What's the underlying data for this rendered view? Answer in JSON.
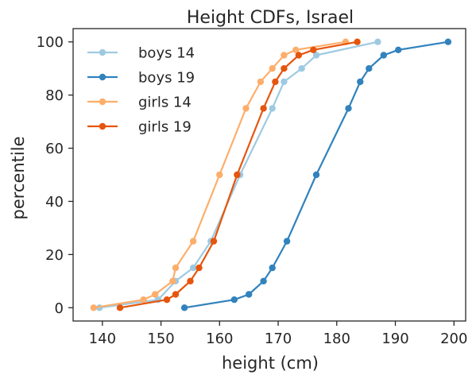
{
  "chart_data": {
    "type": "line",
    "title": "Height CDFs, Israel",
    "xlabel": "height (cm)",
    "ylabel": "percentile",
    "xlim": [
      135,
      202
    ],
    "ylim": [
      -5,
      105
    ],
    "xticks": [
      140,
      150,
      160,
      170,
      180,
      190,
      200
    ],
    "yticks": [
      0,
      20,
      40,
      60,
      80,
      100
    ],
    "grid": false,
    "legend_location": "upper-left",
    "series": [
      {
        "name": "boys 14",
        "color": "#9ecae1",
        "x": [
          139.5,
          149.5,
          152.5,
          155.5,
          158.5,
          163.5,
          169.0,
          171.0,
          174.0,
          176.5,
          187.0
        ],
        "y": [
          0,
          3,
          10,
          15,
          25,
          50,
          75,
          85,
          90,
          95,
          100
        ]
      },
      {
        "name": "boys 19",
        "color": "#3182bd",
        "x": [
          154.0,
          162.5,
          165.0,
          167.5,
          169.0,
          171.5,
          176.5,
          182.0,
          184.0,
          185.5,
          188.0,
          190.5,
          199.0
        ],
        "y": [
          0,
          3,
          5,
          10,
          15,
          25,
          50,
          75,
          85,
          90,
          95,
          97,
          100
        ]
      },
      {
        "name": "girls 14",
        "color": "#fdae6b",
        "x": [
          138.5,
          147.0,
          149.0,
          152.0,
          152.5,
          155.5,
          160.0,
          164.5,
          167.0,
          169.0,
          171.0,
          173.0,
          181.5
        ],
        "y": [
          0,
          3,
          5,
          10,
          15,
          25,
          50,
          75,
          85,
          90,
          95,
          97,
          100
        ]
      },
      {
        "name": "girls 19",
        "color": "#e6550d",
        "x": [
          143.0,
          151.0,
          152.5,
          155.0,
          156.5,
          159.0,
          163.0,
          167.5,
          169.5,
          171.0,
          173.5,
          176.0,
          183.5
        ],
        "y": [
          0,
          3,
          5,
          10,
          15,
          25,
          50,
          75,
          85,
          90,
          95,
          97,
          100
        ]
      }
    ]
  }
}
